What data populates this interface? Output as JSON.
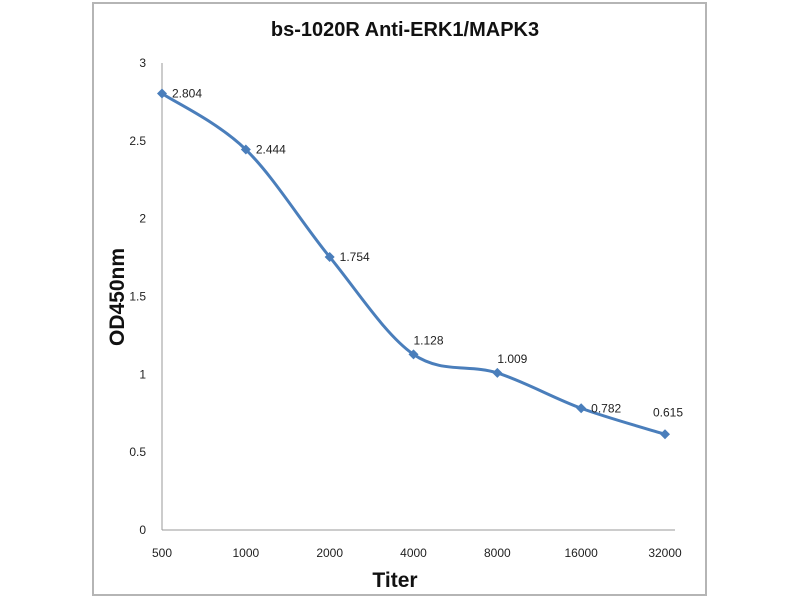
{
  "chart_data": {
    "type": "line",
    "title": "bs-1020R Anti-ERK1/MAPK3",
    "xlabel": "Titer",
    "ylabel": "OD450nm",
    "categories": [
      "500",
      "1000",
      "2000",
      "4000",
      "8000",
      "16000",
      "32000"
    ],
    "series": [
      {
        "name": "OD450nm",
        "values": [
          2.804,
          2.444,
          1.754,
          1.128,
          1.009,
          0.782,
          0.615
        ],
        "labels": [
          "2.804",
          "2.444",
          "1.754",
          "1.128",
          "1.009",
          "0.782",
          "0.615"
        ],
        "color": "#4a7ebb"
      }
    ],
    "ylim": [
      0,
      3
    ],
    "yticks": [
      "0",
      "0.5",
      "1",
      "1.5",
      "2",
      "2.5",
      "3"
    ],
    "ytick_values": [
      0,
      0.5,
      1,
      1.5,
      2,
      2.5,
      3
    ],
    "grid": false,
    "legend": "none",
    "smooth": true
  }
}
